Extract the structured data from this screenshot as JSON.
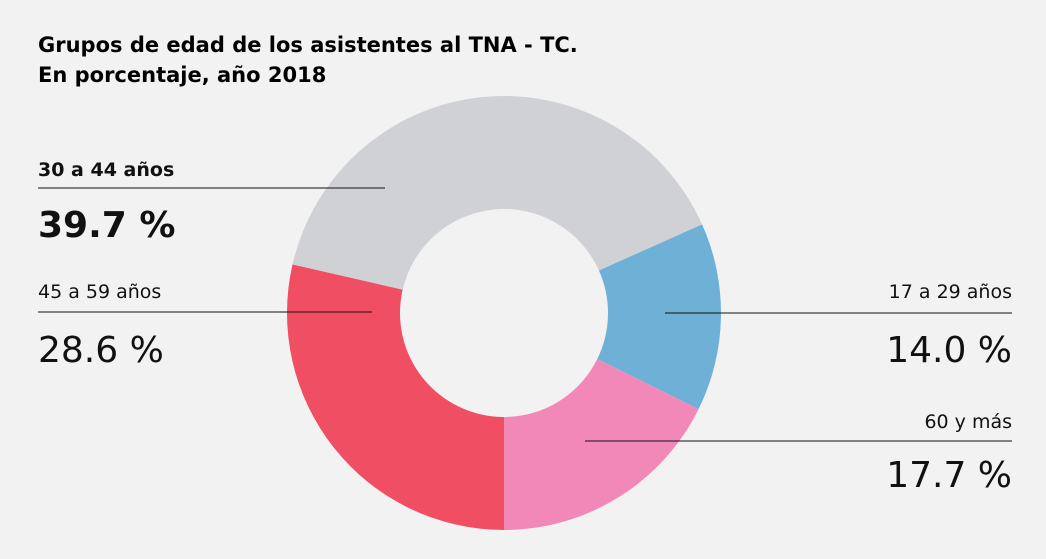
{
  "chart_data": {
    "type": "donut",
    "title": "Grupos de edad de los asistentes al TNA - TC.",
    "subtitle": "En porcentaje, año 2018",
    "categories": [
      "45 a 59 años",
      "30 a 44 años",
      "17 a 29 años",
      "60 y más"
    ],
    "values": [
      28.6,
      39.7,
      14.0,
      17.7
    ],
    "value_labels": [
      "28.6 %",
      "39.7 %",
      "14.0 %",
      "17.7 %"
    ],
    "colors": [
      "#f04e62",
      "#d0d1d5",
      "#6fb1d6",
      "#f288b7"
    ]
  }
}
